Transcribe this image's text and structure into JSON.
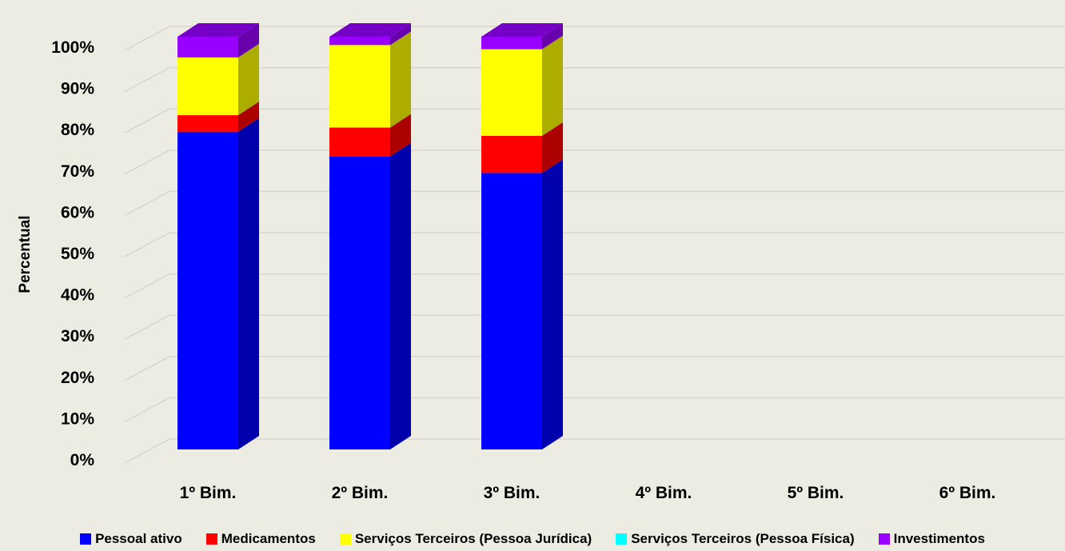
{
  "chart_data": {
    "type": "bar",
    "stacked": true,
    "percent": true,
    "three_d": true,
    "title": "",
    "xlabel": "",
    "ylabel": "Percentual",
    "ylim": [
      0,
      100
    ],
    "yticks": [
      "0%",
      "10%",
      "20%",
      "30%",
      "40%",
      "50%",
      "60%",
      "70%",
      "80%",
      "90%",
      "100%"
    ],
    "categories": [
      "1º Bim.",
      "2º Bim.",
      "3º Bim.",
      "4º Bim.",
      "5º Bim.",
      "6º Bim."
    ],
    "series": [
      {
        "name": "Pessoal ativo",
        "color": "#0000ff",
        "values": [
          77,
          71,
          67,
          null,
          null,
          null
        ]
      },
      {
        "name": "Medicamentos",
        "color": "#ff0000",
        "values": [
          4,
          7,
          9,
          null,
          null,
          null
        ]
      },
      {
        "name": "Serviços Terceiros (Pessoa Jurídica)",
        "color": "#ffff00",
        "values": [
          14,
          20,
          21,
          null,
          null,
          null
        ]
      },
      {
        "name": "Serviços Terceiros (Pessoa Física)",
        "color": "#00ffff",
        "values": [
          0,
          0,
          0,
          null,
          null,
          null
        ]
      },
      {
        "name": "Investimentos",
        "color": "#9900ff",
        "values": [
          5,
          2,
          3,
          null,
          null,
          null
        ]
      }
    ],
    "grid": true,
    "legend_position": "bottom"
  }
}
